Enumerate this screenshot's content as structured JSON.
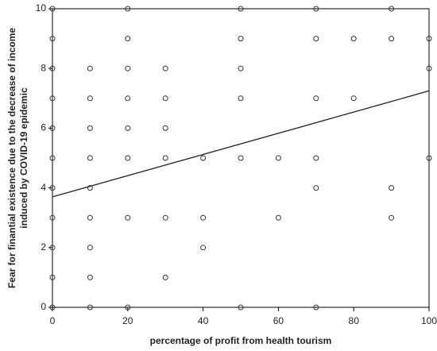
{
  "chart_data": {
    "type": "scatter",
    "xlabel": "percentage of profit from health tourism",
    "ylabel": [
      "Fear for finantial existence due to the decrease of income",
      "induced by COVID-19 epidemic"
    ],
    "series": [
      {
        "color": "#333333",
        "x": [
          0,
          0,
          0,
          0,
          0,
          0,
          0,
          0,
          0,
          0,
          0,
          10,
          10,
          10,
          10,
          10,
          10,
          10,
          10,
          10,
          20,
          20,
          20,
          20,
          20,
          20,
          20,
          20,
          30,
          30,
          30,
          30,
          30,
          30,
          40,
          40,
          40,
          50,
          50,
          50,
          50,
          50,
          50,
          60,
          60,
          70,
          70,
          70,
          70,
          70,
          70,
          80,
          80,
          90,
          90,
          90,
          90,
          100,
          100,
          100
        ],
        "values": [
          0,
          1,
          2,
          3,
          4,
          5,
          6,
          7,
          8,
          9,
          10,
          0,
          1,
          2,
          3,
          4,
          5,
          6,
          7,
          8,
          0,
          3,
          5,
          6,
          7,
          8,
          9,
          10,
          1,
          3,
          5,
          6,
          7,
          8,
          2,
          3,
          5,
          0,
          5,
          7,
          8,
          9,
          10,
          3,
          5,
          0,
          4,
          5,
          7,
          9,
          10,
          7,
          9,
          3,
          4,
          9,
          10,
          5,
          8,
          9
        ]
      }
    ],
    "fit_line": {
      "x": [
        0,
        100
      ],
      "values": [
        3.7,
        7.25
      ]
    },
    "xlim": [
      0,
      100
    ],
    "xticks": [
      0,
      20,
      40,
      60,
      80,
      100
    ],
    "ylim": [
      0,
      10
    ],
    "yticks": [
      0,
      2,
      4,
      6,
      8,
      10
    ]
  }
}
